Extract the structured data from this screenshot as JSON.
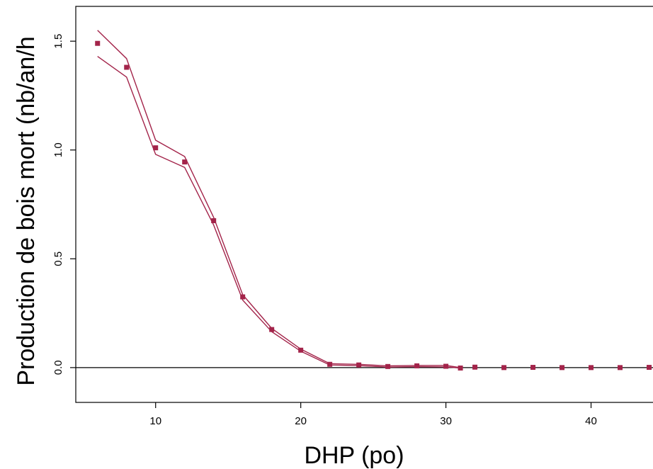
{
  "chart_data": {
    "type": "scatter",
    "title": "",
    "xlabel": "DHP (po)",
    "ylabel": "Production de bois mort (nb/an/h",
    "xlim": [
      4.5,
      45
    ],
    "ylim": [
      -0.16,
      1.66
    ],
    "x_ticks": [
      {
        "value": 10,
        "label": "10"
      },
      {
        "value": 20,
        "label": "20"
      },
      {
        "value": 30,
        "label": "30"
      },
      {
        "value": 40,
        "label": "40"
      }
    ],
    "y_ticks": [
      {
        "value": 0.0,
        "label": "0.0"
      },
      {
        "value": 0.5,
        "label": "0.5"
      },
      {
        "value": 1.0,
        "label": "1.0"
      },
      {
        "value": 1.5,
        "label": "1.5"
      }
    ],
    "reference_line_y": 0,
    "grid": false,
    "colors": {
      "points": "#a3244a",
      "band": "#a3244a",
      "reference": "#000000",
      "frame": "#000000"
    },
    "series": [
      {
        "kind": "points",
        "x": [
          6,
          8,
          10,
          12,
          14,
          16,
          18,
          20,
          22,
          24,
          26,
          28,
          30,
          31,
          32,
          34,
          36,
          38,
          40,
          42,
          44
        ],
        "y": [
          1.49,
          1.38,
          1.01,
          0.945,
          0.675,
          0.325,
          0.175,
          0.08,
          0.015,
          0.012,
          0.005,
          0.008,
          0.006,
          -0.002,
          0.002,
          0.0,
          0.001,
          0.0,
          0.0,
          0.0,
          0.001
        ]
      },
      {
        "kind": "upper",
        "x": [
          6,
          8,
          10,
          12,
          14,
          16,
          18,
          20,
          22,
          24,
          26,
          28,
          30,
          31
        ],
        "y": [
          1.55,
          1.42,
          1.045,
          0.97,
          0.69,
          0.335,
          0.18,
          0.085,
          0.018,
          0.015,
          0.008,
          0.01,
          0.01,
          0.0
        ]
      },
      {
        "kind": "lower",
        "x": [
          6,
          8,
          10,
          12,
          14,
          16,
          18,
          20,
          22,
          24,
          26,
          28,
          30,
          31
        ],
        "y": [
          1.43,
          1.335,
          0.98,
          0.92,
          0.655,
          0.31,
          0.165,
          0.075,
          0.012,
          0.009,
          0.002,
          0.004,
          0.003,
          -0.002
        ]
      }
    ]
  }
}
